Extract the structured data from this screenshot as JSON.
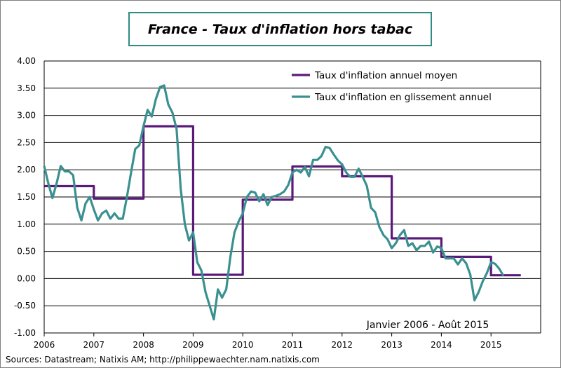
{
  "title": "France - Taux d'inflation hors tabac",
  "source": "Sources: Datastream; Natixis AM; http://philippewaechter.nam.natixis.com",
  "period_note": "Janvier 2006 - Août 2015",
  "colors": {
    "series_annual_avg": "#5a1a7a",
    "series_yoy": "#3a9090",
    "frame": "#2e8b85",
    "grid": "#000000"
  },
  "chart_data": {
    "type": "line",
    "title": "France - Taux d'inflation hors tabac",
    "xlabel": "",
    "ylabel": "",
    "ylim": [
      -1.0,
      4.0
    ],
    "xlim": [
      2006,
      2016
    ],
    "y_ticks": [
      "4.00",
      "3.50",
      "3.00",
      "2.50",
      "2.00",
      "1.50",
      "1.00",
      "0.50",
      "0.00",
      "-0.50",
      "-1.00"
    ],
    "y_tick_values": [
      4.0,
      3.5,
      3.0,
      2.5,
      2.0,
      1.5,
      1.0,
      0.5,
      0.0,
      -0.5,
      -1.0
    ],
    "x_ticks": [
      "2006",
      "2007",
      "2008",
      "2009",
      "2010",
      "2011",
      "2012",
      "2013",
      "2014",
      "2015"
    ],
    "legend": {
      "position": "top-right"
    },
    "series": [
      {
        "name": "Taux d'inflation annuel moyen",
        "color": "#5a1a7a",
        "step": true,
        "x": [
          2006.0,
          2007.0,
          2007.0,
          2008.0,
          2008.0,
          2009.0,
          2009.0,
          2010.0,
          2010.0,
          2011.0,
          2011.0,
          2012.0,
          2012.0,
          2013.0,
          2013.0,
          2014.0,
          2014.0,
          2015.0,
          2015.0,
          2015.6
        ],
        "y": [
          1.7,
          1.7,
          1.47,
          1.47,
          2.8,
          2.8,
          0.07,
          0.07,
          1.45,
          1.45,
          2.06,
          2.06,
          1.88,
          1.88,
          0.74,
          0.74,
          0.4,
          0.4,
          0.06,
          0.06
        ]
      },
      {
        "name": "Taux d'inflation en glissement annuel",
        "color": "#3a9090",
        "step": false,
        "x_start": 2006.0,
        "x_step": 0.08333,
        "y": [
          2.07,
          1.75,
          1.48,
          1.75,
          2.07,
          1.97,
          1.97,
          1.9,
          1.3,
          1.07,
          1.38,
          1.5,
          1.27,
          1.07,
          1.2,
          1.25,
          1.1,
          1.2,
          1.1,
          1.1,
          1.5,
          1.95,
          2.38,
          2.45,
          2.8,
          3.1,
          2.98,
          3.3,
          3.52,
          3.55,
          3.2,
          3.05,
          2.75,
          1.65,
          1.0,
          0.7,
          0.85,
          0.3,
          0.15,
          -0.25,
          -0.5,
          -0.75,
          -0.2,
          -0.35,
          -0.2,
          0.4,
          0.85,
          1.05,
          1.2,
          1.5,
          1.6,
          1.58,
          1.42,
          1.55,
          1.35,
          1.5,
          1.52,
          1.55,
          1.6,
          1.72,
          1.95,
          2.0,
          1.95,
          2.05,
          1.88,
          2.18,
          2.18,
          2.25,
          2.42,
          2.4,
          2.28,
          2.17,
          2.1,
          1.95,
          1.87,
          1.87,
          2.02,
          1.87,
          1.7,
          1.3,
          1.22,
          0.95,
          0.8,
          0.72,
          0.56,
          0.65,
          0.8,
          0.89,
          0.6,
          0.65,
          0.52,
          0.6,
          0.6,
          0.68,
          0.48,
          0.59,
          0.56,
          0.37,
          0.37,
          0.37,
          0.26,
          0.37,
          0.28,
          0.07,
          -0.4,
          -0.25,
          -0.05,
          0.1,
          0.3,
          0.27,
          0.18,
          0.05
        ]
      }
    ]
  }
}
